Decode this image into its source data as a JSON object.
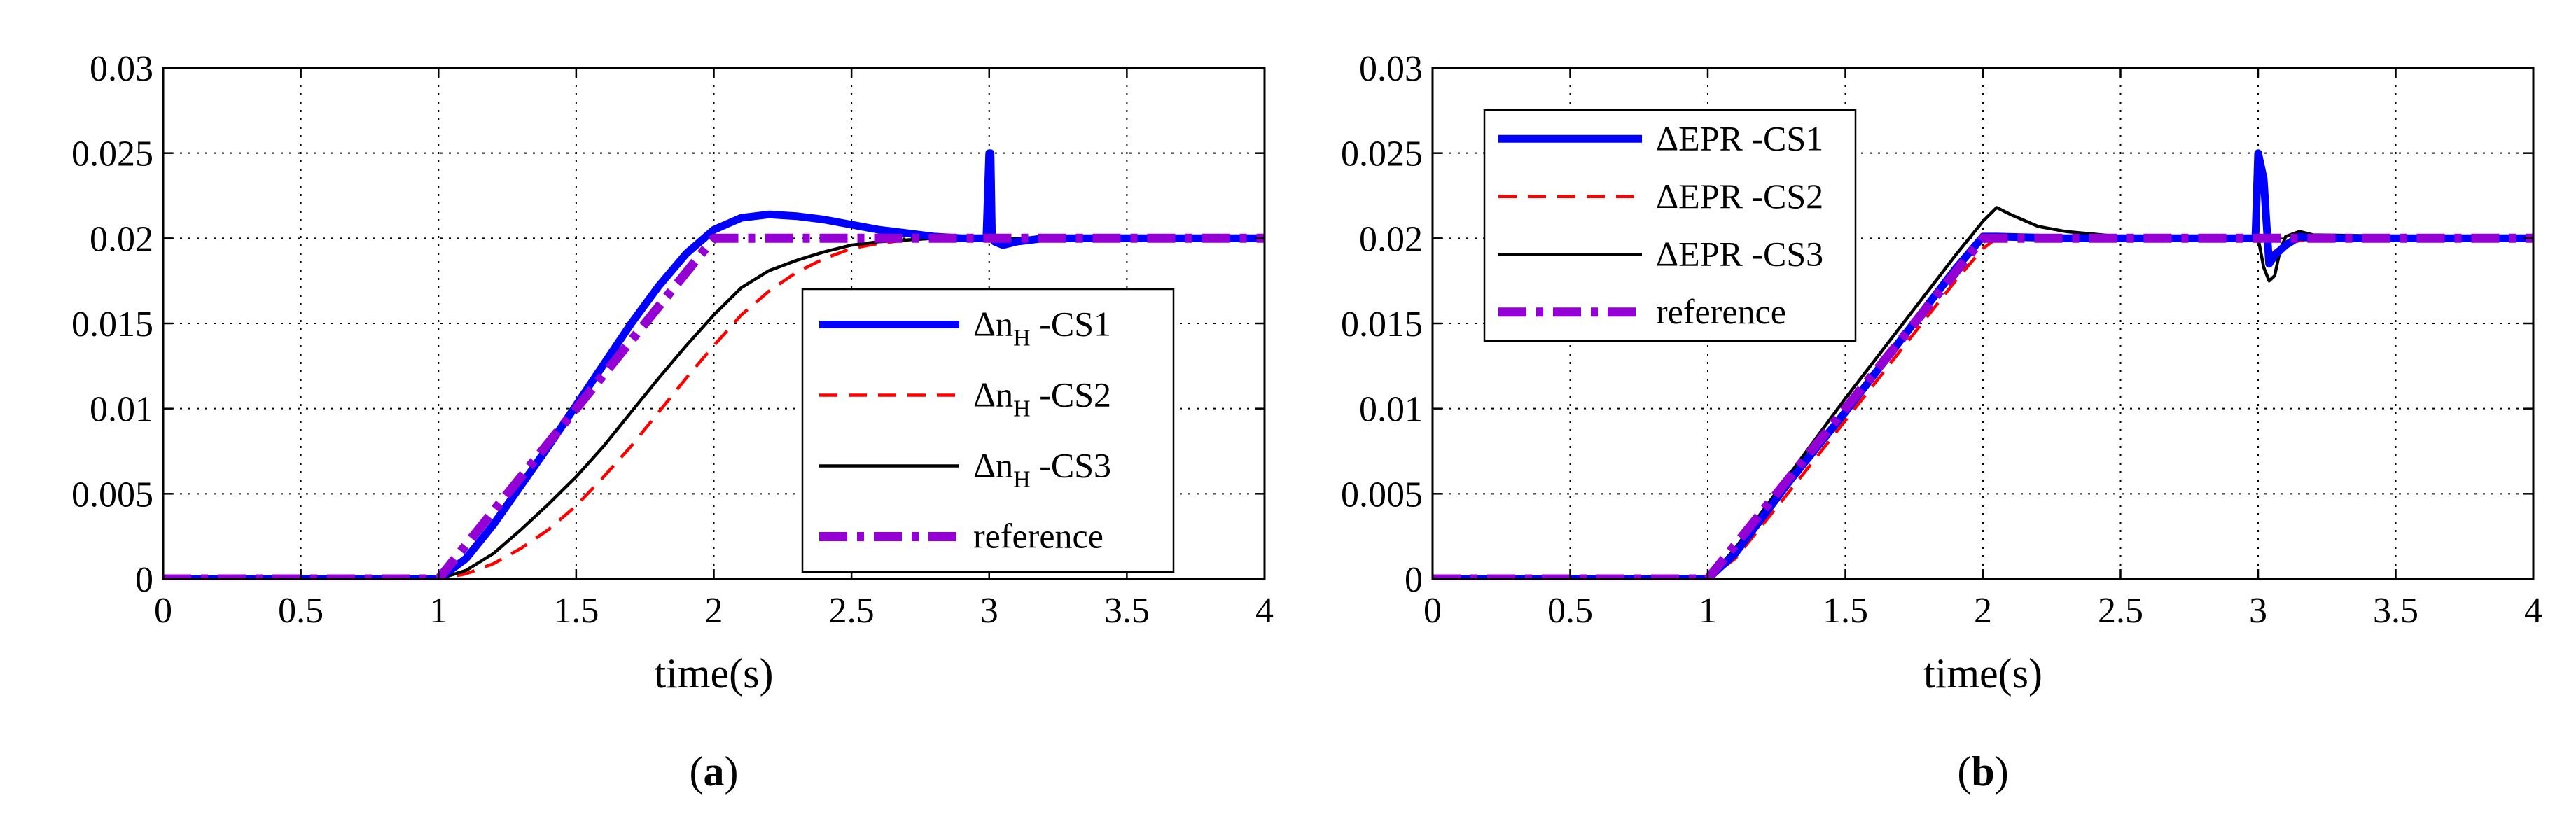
{
  "chart_data": [
    {
      "type": "line",
      "panel_label": "a",
      "title": "",
      "xlabel": "time(s)",
      "ylabel": "",
      "xlim": [
        0,
        4
      ],
      "ylim": [
        0,
        0.03
      ],
      "xticks": [
        0,
        0.5,
        1,
        1.5,
        2,
        2.5,
        3,
        3.5,
        4
      ],
      "xtick_labels": [
        "0",
        "0.5",
        "1",
        "1.5",
        "2",
        "2.5",
        "3",
        "3.5",
        "4"
      ],
      "yticks": [
        0,
        0.005,
        0.01,
        0.015,
        0.02,
        0.025,
        0.03
      ],
      "ytick_labels": [
        "0",
        "0.005",
        "0.01",
        "0.015",
        "0.02",
        "0.025",
        "0.03"
      ],
      "grid": true,
      "legend_position": "center-right",
      "series": [
        {
          "name": "Δn_H -CS1",
          "legend_main": "Δn",
          "legend_sub": "H",
          "legend_suffix": " -CS1",
          "color": "#0000ff",
          "style": "solid-thick",
          "x": [
            0,
            1,
            1.1,
            1.2,
            1.3,
            1.4,
            1.5,
            1.6,
            1.7,
            1.8,
            1.9,
            2.0,
            2.1,
            2.2,
            2.3,
            2.4,
            2.5,
            2.6,
            2.7,
            2.8,
            2.9,
            2.99,
            3.0,
            3.005,
            3.01,
            3.02,
            3.05,
            3.1,
            3.2,
            3.5,
            4.0
          ],
          "y": [
            0,
            0,
            0.0012,
            0.0032,
            0.0055,
            0.0078,
            0.0102,
            0.0126,
            0.015,
            0.0172,
            0.0191,
            0.0205,
            0.0212,
            0.0214,
            0.0213,
            0.0211,
            0.0208,
            0.0205,
            0.0203,
            0.0201,
            0.02,
            0.02,
            0.025,
            0.025,
            0.02,
            0.0198,
            0.0196,
            0.0198,
            0.02,
            0.02,
            0.02
          ]
        },
        {
          "name": "Δn_H -CS2",
          "legend_main": "Δn",
          "legend_sub": "H",
          "legend_suffix": " -CS2",
          "color": "#ff0000",
          "style": "dashed",
          "x": [
            0,
            1,
            1.1,
            1.2,
            1.3,
            1.4,
            1.5,
            1.6,
            1.7,
            1.8,
            1.9,
            2.0,
            2.1,
            2.2,
            2.3,
            2.4,
            2.5,
            2.6,
            2.7,
            2.8,
            3.0,
            4.0
          ],
          "y": [
            0,
            0,
            0.0003,
            0.0009,
            0.0018,
            0.0029,
            0.0043,
            0.006,
            0.0078,
            0.0098,
            0.0118,
            0.0137,
            0.0155,
            0.0169,
            0.018,
            0.0188,
            0.0194,
            0.0197,
            0.0199,
            0.02,
            0.02,
            0.02
          ]
        },
        {
          "name": "Δn_H -CS3",
          "legend_main": "Δn",
          "legend_sub": "H",
          "legend_suffix": " -CS3",
          "color": "#000000",
          "style": "solid",
          "x": [
            0,
            1,
            1.1,
            1.2,
            1.3,
            1.4,
            1.5,
            1.6,
            1.7,
            1.8,
            1.9,
            2.0,
            2.1,
            2.2,
            2.3,
            2.4,
            2.5,
            2.6,
            2.7,
            2.8,
            3.0,
            4.0
          ],
          "y": [
            0,
            0,
            0.0005,
            0.0015,
            0.0029,
            0.0044,
            0.006,
            0.0078,
            0.0098,
            0.0118,
            0.0137,
            0.0155,
            0.0171,
            0.0181,
            0.0187,
            0.0192,
            0.0196,
            0.0198,
            0.0199,
            0.02,
            0.02,
            0.02
          ]
        },
        {
          "name": "reference",
          "legend_main": "reference",
          "legend_sub": "",
          "legend_suffix": "",
          "color": "#9400d3",
          "style": "dashdot-thick",
          "x": [
            0,
            1,
            2,
            4
          ],
          "y": [
            0,
            0,
            0.02,
            0.02
          ]
        }
      ]
    },
    {
      "type": "line",
      "panel_label": "b",
      "title": "",
      "xlabel": "time(s)",
      "ylabel": "",
      "xlim": [
        0,
        4
      ],
      "ylim": [
        0,
        0.03
      ],
      "xticks": [
        0,
        0.5,
        1,
        1.5,
        2,
        2.5,
        3,
        3.5,
        4
      ],
      "xtick_labels": [
        "0",
        "0.5",
        "1",
        "1.5",
        "2",
        "2.5",
        "3",
        "3.5",
        "4"
      ],
      "yticks": [
        0,
        0.005,
        0.01,
        0.015,
        0.02,
        0.025,
        0.03
      ],
      "ytick_labels": [
        "0",
        "0.005",
        "0.01",
        "0.015",
        "0.02",
        "0.025",
        "0.03"
      ],
      "grid": true,
      "legend_position": "top-left",
      "series": [
        {
          "name": "ΔEPR -CS1",
          "legend_main": "ΔEPR -CS1",
          "legend_sub": "",
          "legend_suffix": "",
          "color": "#0000ff",
          "style": "solid-thick",
          "x": [
            0,
            1,
            1.1,
            1.3,
            1.5,
            1.7,
            1.9,
            2.0,
            2.05,
            2.3,
            2.99,
            3.0,
            3.02,
            3.04,
            3.06,
            3.1,
            3.15,
            3.2,
            4.0
          ],
          "y": [
            0,
            0,
            0.0015,
            0.0058,
            0.0098,
            0.014,
            0.0182,
            0.0201,
            0.0201,
            0.02,
            0.02,
            0.025,
            0.0235,
            0.0185,
            0.019,
            0.0196,
            0.0201,
            0.02,
            0.02
          ]
        },
        {
          "name": "ΔEPR -CS2",
          "legend_main": "ΔEPR -CS2",
          "legend_sub": "",
          "legend_suffix": "",
          "color": "#ff0000",
          "style": "dashed",
          "x": [
            0,
            1,
            1.1,
            1.3,
            1.5,
            1.7,
            1.9,
            2.0,
            2.05,
            2.2,
            2.99,
            3.0,
            3.02,
            3.05,
            3.1,
            3.2,
            4.0
          ],
          "y": [
            0,
            0,
            0.0012,
            0.0052,
            0.0093,
            0.0134,
            0.0175,
            0.0194,
            0.02,
            0.0201,
            0.02,
            0.02,
            0.0195,
            0.0191,
            0.0197,
            0.02,
            0.02
          ]
        },
        {
          "name": "ΔEPR -CS3",
          "legend_main": "ΔEPR -CS3",
          "legend_sub": "",
          "legend_suffix": "",
          "color": "#000000",
          "style": "solid",
          "x": [
            0,
            1,
            1.1,
            1.3,
            1.5,
            1.7,
            1.9,
            2.0,
            2.05,
            2.1,
            2.2,
            2.3,
            2.5,
            2.7,
            2.99,
            3.0,
            3.02,
            3.04,
            3.06,
            3.08,
            3.1,
            3.15,
            3.2,
            4.0
          ],
          "y": [
            0,
            0,
            0.0018,
            0.0062,
            0.0106,
            0.0148,
            0.019,
            0.021,
            0.0218,
            0.0214,
            0.0207,
            0.0204,
            0.0201,
            0.02,
            0.02,
            0.02,
            0.0183,
            0.0175,
            0.0178,
            0.0193,
            0.0201,
            0.0204,
            0.0202,
            0.02
          ]
        },
        {
          "name": "reference",
          "legend_main": "reference",
          "legend_sub": "",
          "legend_suffix": "",
          "color": "#9400d3",
          "style": "dashdot-thick",
          "x": [
            0,
            1,
            2,
            4
          ],
          "y": [
            0,
            0,
            0.02,
            0.02
          ]
        }
      ]
    }
  ]
}
